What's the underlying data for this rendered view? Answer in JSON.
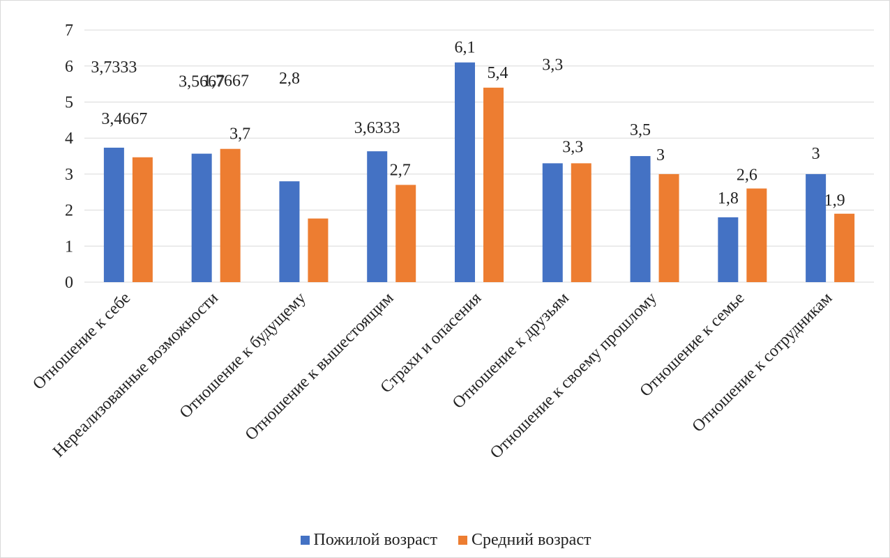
{
  "chart_data": {
    "type": "bar",
    "title": "",
    "xlabel": "",
    "ylabel": "",
    "ylim": [
      0,
      7
    ],
    "yticks": [
      "0",
      "1",
      "2",
      "3",
      "4",
      "5",
      "6",
      "7"
    ],
    "grid": true,
    "legend_position": "bottom",
    "categories": [
      "Отношение к себе",
      "Нереализованные возможности",
      "Отношение к будущему",
      "Отношение к вышестоящим",
      "Страхи и опасения",
      "Отношение к друзьям",
      "Отношение к своему прошлому",
      "Отношение к семье",
      "Отношение к сотрудникам"
    ],
    "series": [
      {
        "name": "Пожилой возраст",
        "color": "#4472c4",
        "values": [
          3.7333,
          3.5667,
          2.8,
          3.6333,
          6.1,
          3.3,
          3.5,
          1.8,
          3.0
        ],
        "data_labels": [
          "3,7333",
          "3,5667",
          "2,8",
          "3,6333",
          "6,1",
          "3,3",
          "3,5",
          "1,8",
          "3"
        ]
      },
      {
        "name": "Средний возраст",
        "color": "#ed7d31",
        "values": [
          3.4667,
          3.7,
          1.7667,
          2.7,
          5.4,
          3.3,
          3.0,
          2.6,
          1.9
        ],
        "data_labels": [
          "3,4667",
          "3,7",
          "1,7667",
          "2,7",
          "5,4",
          "3,3",
          "3",
          "2,6",
          "1,9"
        ]
      }
    ]
  }
}
